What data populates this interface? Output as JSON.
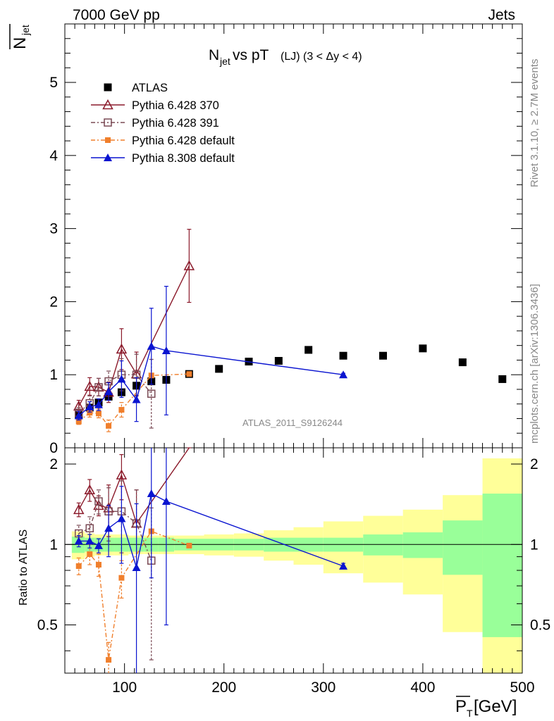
{
  "header": {
    "energy_label": "7000 GeV pp",
    "category_label": "Jets",
    "title_main": "N",
    "title_sub": "jet",
    "title_rest": " vs pT",
    "title_small": "(LJ) (3 < Δy < 4)",
    "watermark": "ATLAS_2011_S9126244",
    "side_text_top": "Rivet 3.1.10, ≥ 2.7M events",
    "side_text_bottom": "mcplots.cern.ch [arXiv:1306.3436]"
  },
  "axes": {
    "ylabel_main": "N",
    "ylabel_main_sub": "jet",
    "ylabel_ratio": "Ratio to ATLAS",
    "xlabel": "P",
    "xlabel_sub": "T",
    "xlabel_unit": " [GeV]"
  },
  "colors": {
    "ATLAS": "#000000",
    "Pythia 6.428 370": "#8b1a2b",
    "Pythia 6.428 391": "#7a4a55",
    "Pythia 6.428 default": "#f07f2c",
    "Pythia 8.308 default": "#0a14d0",
    "band_inner": "#99ff99",
    "band_outer": "#ffff99"
  },
  "chart_data": {
    "type": "scatter",
    "x_range": [
      40,
      500
    ],
    "main_y_range": [
      0,
      5.8
    ],
    "ratio_y_range": [
      0.33,
      2.3
    ],
    "ratio_y_log": true,
    "x_ticks": [
      100,
      200,
      300,
      400,
      500
    ],
    "main_y_ticks": [
      0,
      1,
      2,
      3,
      4,
      5
    ],
    "ratio_y_ticks": [
      0.5,
      1,
      2
    ],
    "legend": [
      {
        "name": "ATLAS",
        "marker": "square-filled"
      },
      {
        "name": "Pythia 6.428 370",
        "marker": "triangle-open"
      },
      {
        "name": "Pythia 6.428 391",
        "marker": "square-open"
      },
      {
        "name": "Pythia 6.428 default",
        "marker": "square-small"
      },
      {
        "name": "Pythia 8.308 default",
        "marker": "triangle-filled"
      }
    ],
    "series": [
      {
        "name": "ATLAS",
        "x": [
          54,
          65,
          74,
          84,
          97,
          112,
          127,
          142,
          165,
          195,
          225,
          255,
          285,
          320,
          360,
          400,
          440,
          480
        ],
        "y": [
          0.45,
          0.55,
          0.62,
          0.7,
          0.76,
          0.85,
          0.91,
          0.93,
          1.01,
          1.08,
          1.18,
          1.19,
          1.34,
          1.26,
          1.26,
          1.36,
          1.17,
          0.94
        ],
        "band_bins": [
          [
            47,
            60
          ],
          [
            60,
            70
          ],
          [
            70,
            80
          ],
          [
            80,
            90
          ],
          [
            90,
            104
          ],
          [
            104,
            120
          ],
          [
            120,
            134
          ],
          [
            134,
            150
          ],
          [
            150,
            180
          ],
          [
            180,
            210
          ],
          [
            210,
            240
          ],
          [
            240,
            270
          ],
          [
            270,
            300
          ],
          [
            300,
            340
          ],
          [
            340,
            380
          ],
          [
            380,
            420
          ],
          [
            420,
            460
          ],
          [
            460,
            500
          ]
        ],
        "band_inner": [
          0.07,
          0.06,
          0.06,
          0.06,
          0.06,
          0.06,
          0.06,
          0.06,
          0.05,
          0.05,
          0.05,
          0.06,
          0.06,
          0.06,
          0.09,
          0.11,
          0.23,
          0.55
        ],
        "band_outer": [
          0.12,
          0.1,
          0.09,
          0.09,
          0.09,
          0.08,
          0.08,
          0.08,
          0.08,
          0.09,
          0.1,
          0.13,
          0.16,
          0.22,
          0.28,
          0.35,
          0.53,
          1.1
        ]
      },
      {
        "name": "Pythia 6.428 370",
        "x": [
          54,
          65,
          74,
          84,
          97,
          112,
          165
        ],
        "y": [
          0.57,
          0.84,
          0.83,
          0.76,
          1.35,
          1.01,
          2.49
        ],
        "yerr": [
          0.08,
          0.12,
          0.12,
          0.14,
          0.28,
          0.3,
          0.5
        ],
        "ratio": [
          1.35,
          1.6,
          1.4,
          1.37,
          1.82,
          1.2,
          2.45
        ],
        "ratio_err": [
          0.08,
          0.15,
          0.12,
          0.3,
          0.35,
          0.4,
          0.05
        ]
      },
      {
        "name": "Pythia 6.428 391",
        "x": [
          54,
          65,
          74,
          84,
          97,
          112,
          127
        ],
        "y": [
          0.48,
          0.61,
          0.83,
          0.91,
          1.0,
          1.0,
          0.74
        ],
        "yerr": [
          0.07,
          0.1,
          0.12,
          0.14,
          0.22,
          0.28,
          0.47
        ],
        "ratio": [
          1.1,
          1.15,
          1.45,
          1.33,
          1.33,
          1.2,
          0.87
        ],
        "ratio_err": [
          0.08,
          0.12,
          0.15,
          0.3,
          0.4,
          0.4,
          0.5
        ]
      },
      {
        "name": "Pythia 6.428 default",
        "x": [
          54,
          65,
          74,
          84,
          97,
          127,
          165
        ],
        "y": [
          0.36,
          0.48,
          0.47,
          0.3,
          0.52,
          0.99,
          1.01
        ],
        "yerr": [
          0.04,
          0.06,
          0.06,
          0.08,
          0.1,
          0.0,
          0.0
        ],
        "ratio": [
          0.83,
          0.92,
          0.84,
          0.37,
          0.75,
          1.12,
          0.99
        ],
        "ratio_err": [
          0.06,
          0.08,
          0.08,
          0.06,
          0.12,
          0.0,
          0.0
        ]
      },
      {
        "name": "Pythia 8.308 default",
        "x": [
          54,
          65,
          74,
          84,
          97,
          112,
          127,
          142,
          320
        ],
        "y": [
          0.44,
          0.56,
          0.59,
          0.77,
          0.94,
          0.66,
          1.39,
          1.33,
          1.0
        ],
        "yerr": [
          0.06,
          0.07,
          0.08,
          0.12,
          0.25,
          0.3,
          0.52,
          0.88,
          0.02
        ],
        "ratio": [
          1.03,
          1.03,
          0.99,
          1.15,
          1.25,
          0.82,
          1.55,
          1.45,
          0.83
        ],
        "ratio_err": [
          0.05,
          0.06,
          0.06,
          0.25,
          0.4,
          0.6,
          0.8,
          0.95,
          0.02
        ]
      }
    ]
  }
}
